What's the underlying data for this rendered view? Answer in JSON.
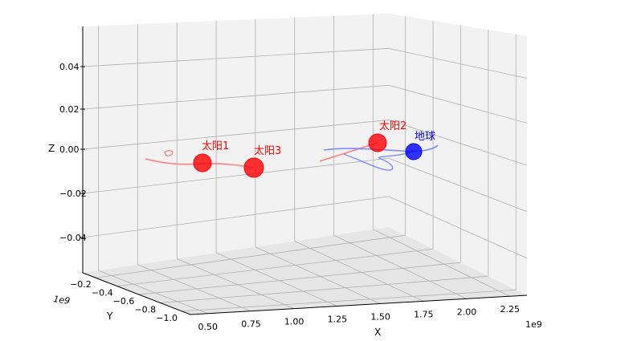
{
  "chart_data": {
    "type": "scatter3d",
    "title": "",
    "axes": {
      "x": {
        "label": "X",
        "ticks": [
          "0.50",
          "0.75",
          "1.00",
          "1.25",
          "1.50",
          "1.75",
          "2.00",
          "2.25"
        ],
        "offset_label": "1e9",
        "range": [
          0.4,
          2.35
        ]
      },
      "y": {
        "label": "Y",
        "ticks": [
          "−0.2",
          "−0.4",
          "−0.6",
          "−0.8",
          "−1.0"
        ],
        "offset_label": "1e9",
        "range": [
          -0.1,
          -1.05
        ]
      },
      "z": {
        "label": "Z",
        "ticks": [
          "0.04",
          "0.02",
          "0.00",
          "−0.02",
          "−0.04"
        ],
        "range": [
          -0.055,
          0.055
        ]
      }
    },
    "bodies": [
      {
        "name": "太阳1",
        "color": "#ff0000",
        "x": 0.68,
        "y": -0.55,
        "z": 0.0
      },
      {
        "name": "太阳3",
        "color": "#ff0000",
        "x": 1.01,
        "y": -0.55,
        "z": 0.0
      },
      {
        "name": "太阳2",
        "color": "#ff0000",
        "x": 1.8,
        "y": -0.55,
        "z": 0.0
      },
      {
        "name": "地球",
        "color": "#0000ff",
        "x": 2.02,
        "y": -0.55,
        "z": 0.0
      }
    ],
    "grid": true
  }
}
